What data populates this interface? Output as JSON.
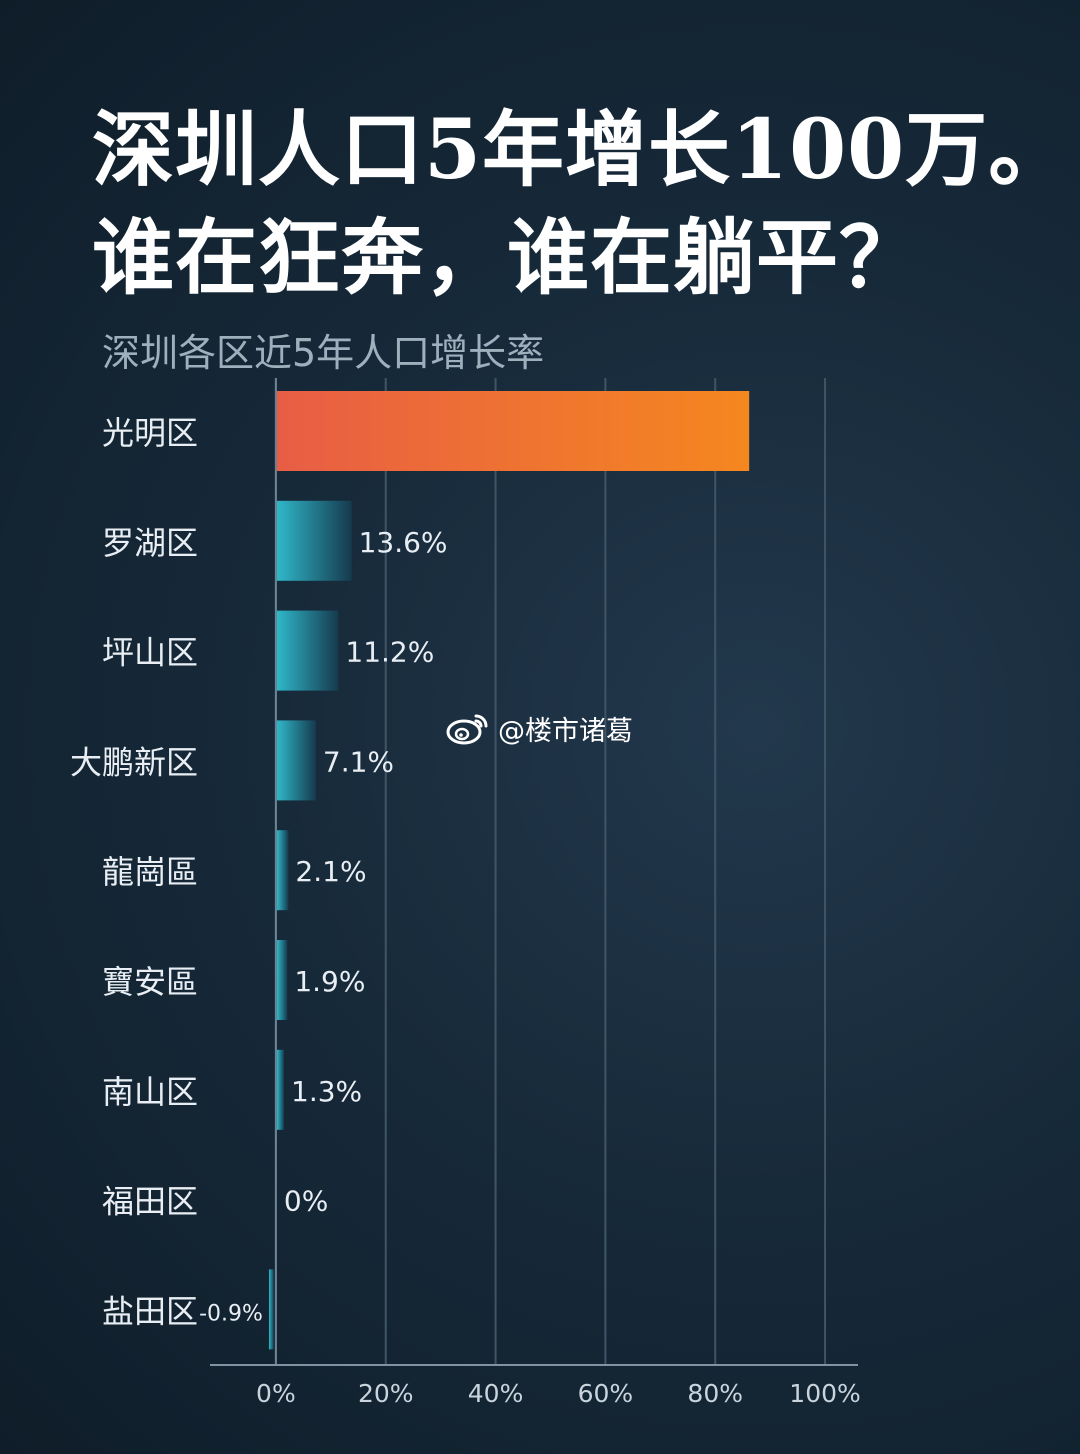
{
  "headline": {
    "line1": "深圳人口5年增长100万。",
    "line2": "谁在狂奔，谁在躺平？"
  },
  "watermark": "@楼市诸葛",
  "colors": {
    "highlight_start": "#e85d45",
    "highlight_end": "#f5871f",
    "bar_start": "#2fb8c9",
    "bar_end": "#163a4e",
    "grid": "#3f5566",
    "text": "#e8eef3",
    "axis_text": "#c9d4dc"
  },
  "chart_data": {
    "type": "bar",
    "orientation": "horizontal",
    "title": "深圳各区近5年人口增长率",
    "categories": [
      "光明区",
      "罗湖区",
      "坪山区",
      "大鹏新区",
      "龍崗區",
      "寶安區",
      "南山区",
      "福田区",
      "盐田区"
    ],
    "values": [
      86,
      13.6,
      11.2,
      7.1,
      2.1,
      1.9,
      1.3,
      0,
      -0.9
    ],
    "value_labels": [
      "",
      "13.6%",
      "11.2%",
      "7.1%",
      "2.1%",
      "1.9%",
      "1.3%",
      "0%",
      "-0.9%"
    ],
    "highlight_index": 0,
    "xlim": [
      -12,
      106
    ],
    "xticks": [
      0,
      20,
      40,
      60,
      80,
      100
    ],
    "xtick_labels": [
      "0%",
      "20%",
      "40%",
      "60%",
      "80%",
      "100%"
    ],
    "xlabel": "",
    "ylabel": "",
    "grid": true
  }
}
